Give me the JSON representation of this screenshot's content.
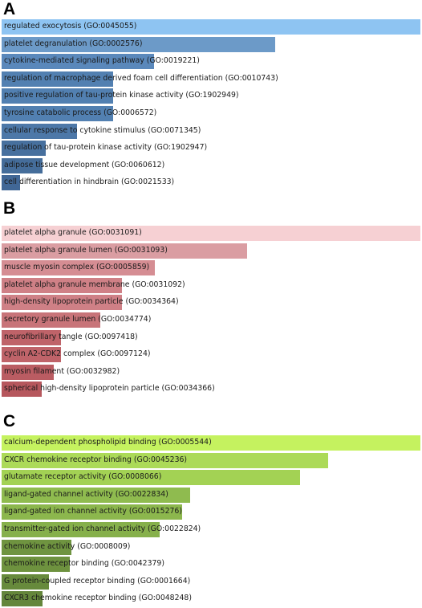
{
  "chart_data": [
    {
      "type": "bar",
      "panel": "A",
      "orientation": "horizontal",
      "categories": [
        "regulated exocytosis (GO:0045055)",
        "platelet degranulation (GO:0002576)",
        "cytokine-mediated signaling pathway (GO:0019221)",
        "regulation of macrophage derived foam cell differentiation (GO:0010743)",
        "positive regulation of tau-protein kinase activity (GO:1902949)",
        "tyrosine catabolic process (GO:0006572)",
        "cellular response to cytokine stimulus (GO:0071345)",
        "regulation of tau-protein kinase activity (GO:1902947)",
        "adipose tissue development (GO:0060612)",
        "cell differentiation in hindbrain (GO:0021533)"
      ],
      "values": [
        1.0,
        0.653,
        0.364,
        0.267,
        0.267,
        0.267,
        0.181,
        0.105,
        0.097,
        0.044
      ],
      "colors": [
        "#8ec4f2",
        "#6c9ac8",
        "#5a88bb",
        "#5280b1",
        "#5280b1",
        "#5280b1",
        "#4d78a8",
        "#47709e",
        "#456d9a",
        "#416796"
      ]
    },
    {
      "type": "bar",
      "panel": "B",
      "orientation": "horizontal",
      "categories": [
        "platelet alpha granule (GO:0031091)",
        "platelet alpha granule lumen (GO:0031093)",
        "muscle myosin complex (GO:0005859)",
        "platelet alpha granule membrane (GO:0031092)",
        "high-density lipoprotein particle (GO:0034364)",
        "secretory granule lumen (GO:0034774)",
        "neurofibrillary tangle (GO:0097418)",
        "cyclin A2-CDK2 complex (GO:0097124)",
        "myosin filament (GO:0032982)",
        "spherical high-density lipoprotein particle (GO:0034366)"
      ],
      "values": [
        1.0,
        0.586,
        0.365,
        0.287,
        0.287,
        0.235,
        0.141,
        0.141,
        0.124,
        0.095
      ],
      "colors": [
        "#f6d0d3",
        "#da9da2",
        "#d58d93",
        "#cf8086",
        "#cf8086",
        "#c87479",
        "#bf6369",
        "#bf6369",
        "#ba5c62",
        "#b6575d"
      ]
    },
    {
      "type": "bar",
      "panel": "C",
      "orientation": "horizontal",
      "categories": [
        "calcium-dependent phospholipid binding (GO:0005544)",
        "CXCR chemokine receptor binding (GO:0045236)",
        "glutamate receptor activity (GO:0008066)",
        "ligand-gated channel activity (GO:0022834)",
        "ligand-gated ion channel activity (GO:0015276)",
        "transmitter-gated ion channel activity (GO:0022824)",
        "chemokine activity (GO:0008009)",
        "chemokine receptor binding (GO:0042379)",
        "G protein-coupled receptor binding (GO:0001664)",
        "CXCR3 chemokine receptor binding (GO:0048248)"
      ],
      "values": [
        1.0,
        0.78,
        0.712,
        0.45,
        0.431,
        0.378,
        0.166,
        0.163,
        0.113,
        0.097
      ],
      "colors": [
        "#c5f25f",
        "#acda58",
        "#a3d254",
        "#8fbb4f",
        "#8cb74d",
        "#86b04b",
        "#6f9440",
        "#6e923f",
        "#678a3c",
        "#64863b"
      ]
    }
  ]
}
